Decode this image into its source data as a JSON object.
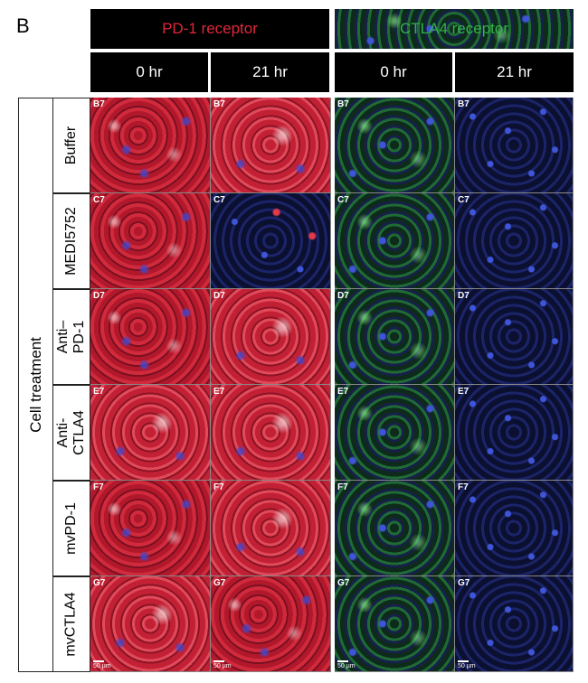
{
  "panel_letter": "B",
  "headers": {
    "pd1": "PD-1 receptor",
    "ctla4": "CTLA4 receptor",
    "times": [
      "0 hr",
      "21 hr",
      "0 hr",
      "21 hr"
    ]
  },
  "row_axis_label": "Cell treatment",
  "rows": [
    {
      "label": "Buffer",
      "code": "B7"
    },
    {
      "label": "MEDI5752",
      "code": "C7"
    },
    {
      "label": "Anti–\nPD-1",
      "code": "D7"
    },
    {
      "label": "Anti-\nCTLA4",
      "code": "E7"
    },
    {
      "label": "mvPD-1",
      "code": "F7"
    },
    {
      "label": "mvCTLA4",
      "code": "G7"
    }
  ],
  "scale_bar_label": "50 µm",
  "colors": {
    "pd1_header": "#e0283a",
    "ctla4_header": "#34b24a",
    "header_bg": "#000000"
  }
}
